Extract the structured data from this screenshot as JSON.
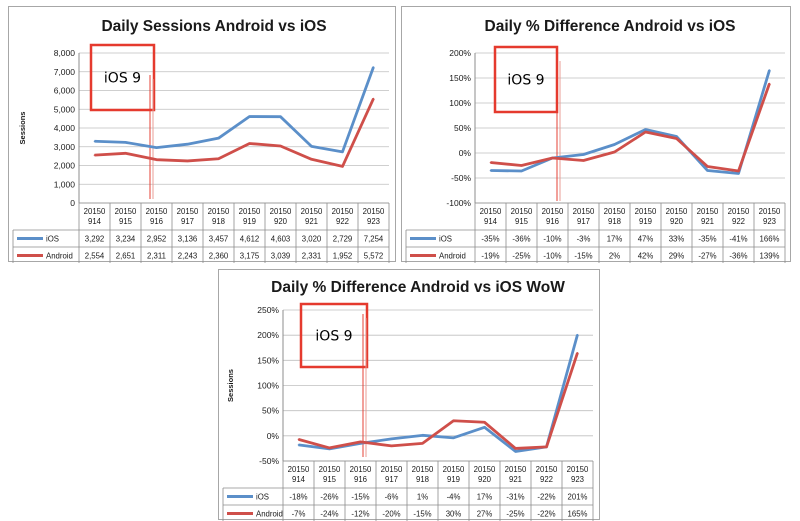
{
  "colors": {
    "ios": "#5b8fc9",
    "android": "#cf4f4a",
    "annotation": "#e53a2e",
    "grid": "#bfbfbf"
  },
  "chart_data": [
    {
      "type": "line",
      "title": "Daily Sessions Android vs iOS",
      "ylabel": "Sessions",
      "categories": [
        "20150\n914",
        "20150\n915",
        "20150\n916",
        "20150\n917",
        "20150\n918",
        "20150\n919",
        "20150\n920",
        "20150\n921",
        "20150\n922",
        "20150\n923"
      ],
      "ylim": [
        0,
        8000
      ],
      "yticks": [
        0,
        1000,
        2000,
        3000,
        4000,
        5000,
        6000,
        7000,
        8000
      ],
      "ytick_labels": [
        "0",
        "1,000",
        "2,000",
        "3,000",
        "4,000",
        "5,000",
        "6,000",
        "7,000",
        "8,000"
      ],
      "grid": true,
      "legend": "data table",
      "annotation": "iOS 9",
      "series": [
        {
          "name": "iOS",
          "color": "#5b8fc9",
          "values": [
            3292,
            3234,
            2952,
            3136,
            3457,
            4612,
            4603,
            3020,
            2729,
            7254
          ],
          "labels": [
            "3,292",
            "3,234",
            "2,952",
            "3,136",
            "3,457",
            "4,612",
            "4,603",
            "3,020",
            "2,729",
            "7,254"
          ]
        },
        {
          "name": "Android",
          "color": "#cf4f4a",
          "values": [
            2554,
            2651,
            2311,
            2243,
            2360,
            3175,
            3039,
            2331,
            1952,
            5572
          ],
          "labels": [
            "2,554",
            "2,651",
            "2,311",
            "2,243",
            "2,360",
            "3,175",
            "3,039",
            "2,331",
            "1,952",
            "5,572"
          ]
        }
      ]
    },
    {
      "type": "line",
      "title": "Daily % Difference Android vs iOS",
      "ylabel": "",
      "categories": [
        "20150\n914",
        "20150\n915",
        "20150\n916",
        "20150\n917",
        "20150\n918",
        "20150\n919",
        "20150\n920",
        "20150\n921",
        "20150\n922",
        "20150\n923"
      ],
      "ylim": [
        -100,
        200
      ],
      "yticks": [
        -100,
        -50,
        0,
        50,
        100,
        150,
        200
      ],
      "ytick_labels": [
        "-100%",
        "-50%",
        "0%",
        "50%",
        "100%",
        "150%",
        "200%"
      ],
      "grid": true,
      "legend": "data table",
      "annotation": "iOS 9",
      "series": [
        {
          "name": "iOS",
          "color": "#5b8fc9",
          "values": [
            -35,
            -36,
            -10,
            -3,
            17,
            47,
            33,
            -35,
            -41,
            166
          ],
          "labels": [
            "-35%",
            "-36%",
            "-10%",
            "-3%",
            "17%",
            "47%",
            "33%",
            "-35%",
            "-41%",
            "166%"
          ]
        },
        {
          "name": "Android",
          "color": "#cf4f4a",
          "values": [
            -19,
            -25,
            -10,
            -15,
            2,
            42,
            29,
            -27,
            -36,
            139
          ],
          "labels": [
            "-19%",
            "-25%",
            "-10%",
            "-15%",
            "2%",
            "42%",
            "29%",
            "-27%",
            "-36%",
            "139%"
          ]
        }
      ]
    },
    {
      "type": "line",
      "title": "Daily % Difference Android vs iOS WoW",
      "ylabel": "Sessions",
      "categories": [
        "20150\n914",
        "20150\n915",
        "20150\n916",
        "20150\n917",
        "20150\n918",
        "20150\n919",
        "20150\n920",
        "20150\n921",
        "20150\n922",
        "20150\n923"
      ],
      "ylim": [
        -50,
        250
      ],
      "yticks": [
        -50,
        0,
        50,
        100,
        150,
        200,
        250
      ],
      "ytick_labels": [
        "-50%",
        "0%",
        "50%",
        "100%",
        "150%",
        "200%",
        "250%"
      ],
      "grid": true,
      "legend": "data table",
      "annotation": "iOS 9",
      "series": [
        {
          "name": "iOS",
          "color": "#5b8fc9",
          "values": [
            -18,
            -26,
            -15,
            -6,
            1,
            -4,
            17,
            -31,
            -22,
            201
          ],
          "labels": [
            "-18%",
            "-26%",
            "-15%",
            "-6%",
            "1%",
            "-4%",
            "17%",
            "-31%",
            "-22%",
            "201%"
          ]
        },
        {
          "name": "Android",
          "color": "#cf4f4a",
          "values": [
            -7,
            -24,
            -12,
            -20,
            -15,
            30,
            27,
            -25,
            -22,
            165
          ],
          "labels": [
            "-7%",
            "-24%",
            "-12%",
            "-20%",
            "-15%",
            "30%",
            "27%",
            "-25%",
            "-22%",
            "165%"
          ]
        }
      ]
    }
  ]
}
